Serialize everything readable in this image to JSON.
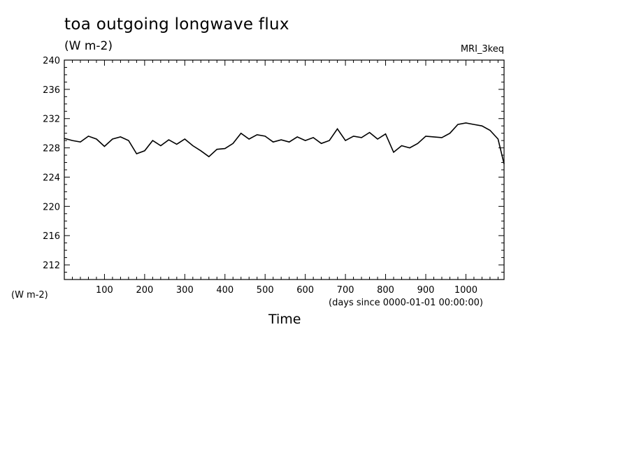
{
  "chart_data": {
    "type": "line",
    "title": "toa outgoing longwave flux",
    "units": "(W m-2)",
    "model_label": "MRI_3keq",
    "ylabel": "(W m-2)",
    "xlabel": "Time",
    "x_units_note": "(days since 0000-01-01 00:00:00)",
    "xlim": [
      0,
      1095
    ],
    "ylim": [
      210,
      240
    ],
    "x_ticks": [
      100,
      200,
      300,
      400,
      500,
      600,
      700,
      800,
      900,
      1000
    ],
    "y_ticks": [
      212,
      216,
      220,
      224,
      228,
      232,
      236,
      240
    ],
    "grid": false,
    "series": [
      {
        "x": [
          0,
          20,
          40,
          60,
          80,
          100,
          120,
          140,
          160,
          180,
          200,
          220,
          240,
          260,
          280,
          300,
          320,
          340,
          360,
          380,
          400,
          420,
          440,
          460,
          480,
          500,
          520,
          540,
          560,
          580,
          600,
          620,
          640,
          660,
          680,
          700,
          720,
          740,
          760,
          780,
          800,
          820,
          840,
          860,
          880,
          900,
          920,
          940,
          960,
          980,
          1000,
          1020,
          1040,
          1060,
          1080,
          1095
        ],
        "y": [
          229.3,
          229.0,
          228.8,
          229.6,
          229.2,
          228.2,
          229.2,
          229.5,
          229.0,
          227.2,
          227.6,
          229.0,
          228.3,
          229.1,
          228.5,
          229.2,
          228.3,
          227.6,
          226.8,
          227.8,
          227.9,
          228.6,
          230.0,
          229.2,
          229.8,
          229.6,
          228.8,
          229.1,
          228.8,
          229.5,
          229.0,
          229.4,
          228.6,
          229.0,
          230.6,
          229.0,
          229.6,
          229.4,
          230.1,
          229.2,
          229.9,
          227.4,
          228.3,
          228.0,
          228.6,
          229.6,
          229.5,
          229.4,
          230.0,
          231.2,
          231.4,
          231.2,
          231.0,
          230.4,
          229.2,
          225.8
        ]
      }
    ]
  }
}
